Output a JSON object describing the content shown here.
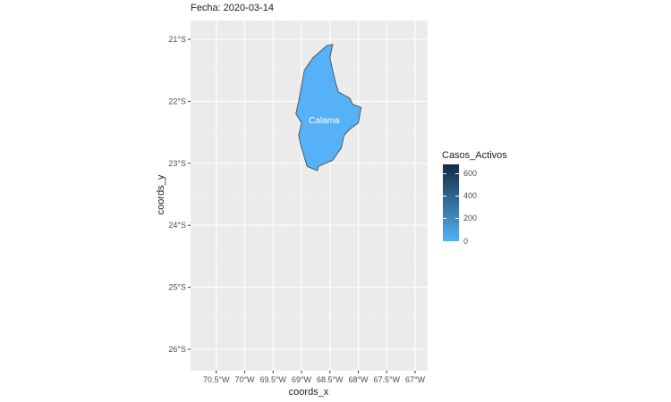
{
  "title": "Fecha: 2020-03-14",
  "x_axis": {
    "title": "coords_x",
    "ticks": [
      {
        "value": -70.5,
        "label": "70.5°W"
      },
      {
        "value": -70.0,
        "label": "70°W"
      },
      {
        "value": -69.5,
        "label": "69.5°W"
      },
      {
        "value": -69.0,
        "label": "69°W"
      },
      {
        "value": -68.5,
        "label": "68.5°W"
      },
      {
        "value": -68.0,
        "label": "68°W"
      },
      {
        "value": -67.5,
        "label": "67.5°W"
      },
      {
        "value": -67.0,
        "label": "67°W"
      }
    ]
  },
  "y_axis": {
    "title": "coords_y",
    "ticks": [
      {
        "value": -21,
        "label": "21°S"
      },
      {
        "value": -22,
        "label": "22°S"
      },
      {
        "value": -23,
        "label": "23°S"
      },
      {
        "value": -24,
        "label": "24°S"
      },
      {
        "value": -25,
        "label": "25°S"
      },
      {
        "value": -26,
        "label": "26°S"
      }
    ]
  },
  "region": {
    "name": "Calama",
    "casos_activos": 0,
    "fill_color": "#56b1f7",
    "border_color": "#404040",
    "label_lon": -68.6,
    "label_lat": -22.3,
    "outline": [
      [
        -68.55,
        -21.1
      ],
      [
        -68.45,
        -21.08
      ],
      [
        -68.5,
        -21.3
      ],
      [
        -68.45,
        -21.5
      ],
      [
        -68.4,
        -21.7
      ],
      [
        -68.35,
        -21.85
      ],
      [
        -68.15,
        -21.95
      ],
      [
        -68.1,
        -22.05
      ],
      [
        -67.95,
        -22.1
      ],
      [
        -68.0,
        -22.35
      ],
      [
        -68.15,
        -22.45
      ],
      [
        -68.25,
        -22.55
      ],
      [
        -68.3,
        -22.75
      ],
      [
        -68.45,
        -22.95
      ],
      [
        -68.7,
        -23.05
      ],
      [
        -68.72,
        -23.12
      ],
      [
        -68.9,
        -23.05
      ],
      [
        -69.0,
        -22.75
      ],
      [
        -69.05,
        -22.55
      ],
      [
        -69.0,
        -22.35
      ],
      [
        -69.1,
        -22.2
      ],
      [
        -69.05,
        -22.0
      ],
      [
        -69.0,
        -21.75
      ],
      [
        -68.95,
        -21.5
      ],
      [
        -68.8,
        -21.3
      ],
      [
        -68.55,
        -21.1
      ]
    ]
  },
  "legend": {
    "title": "Casos_Activos",
    "labels": [
      {
        "value": 0,
        "text": "0"
      },
      {
        "value": 200,
        "text": "200"
      },
      {
        "value": 400,
        "text": "400"
      },
      {
        "value": 600,
        "text": "600"
      }
    ],
    "max_value": 680,
    "low_color": "#56b1f7",
    "high_color": "#132b43"
  },
  "colors": {
    "panel_background": "#ebebeb",
    "grid_major": "#ffffff",
    "grid_minor": "#f2f2f2"
  }
}
